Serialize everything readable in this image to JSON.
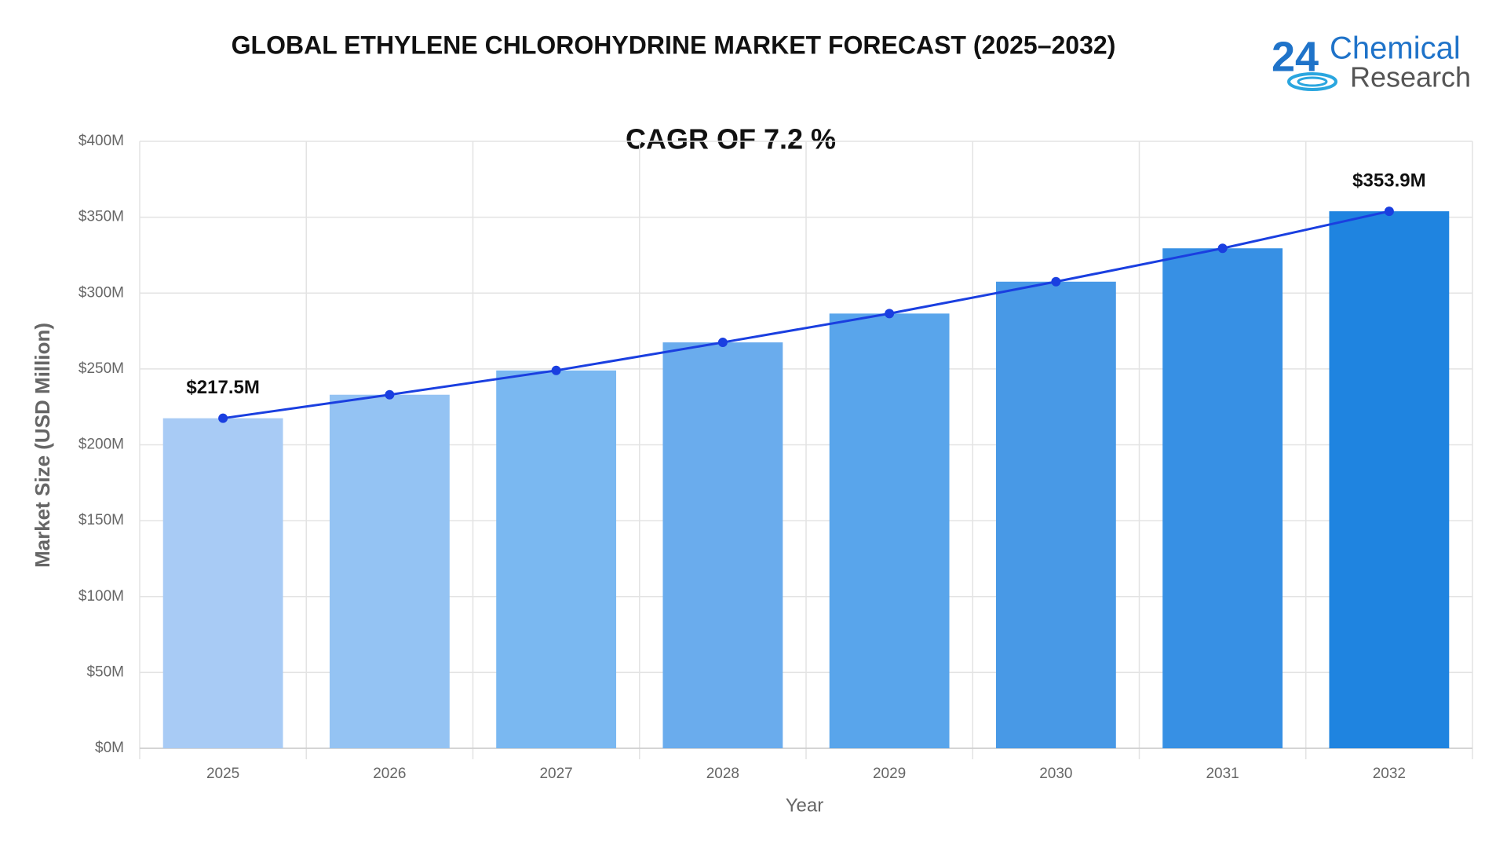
{
  "chart_data": {
    "type": "bar",
    "title": "GLOBAL ETHYLENE CHLOROHYDRINE MARKET FORECAST (2025–2032)",
    "subtitle": "CAGR OF 7.2 %",
    "x_label": "Year",
    "y_label": "Market Size (USD Million)",
    "categories": [
      "2025",
      "2026",
      "2027",
      "2028",
      "2029",
      "2030",
      "2031",
      "2032"
    ],
    "values": [
      217.5,
      233,
      249,
      267.5,
      286.5,
      307.5,
      329.5,
      353.9
    ],
    "value_labels": [
      "$217.5M",
      null,
      null,
      null,
      null,
      null,
      null,
      "$353.9M"
    ],
    "colors": [
      "#a8cbf5",
      "#94c3f3",
      "#7ab8f1",
      "#6aaced",
      "#59a5eb",
      "#4899e6",
      "#3790e4",
      "#1f84e0"
    ],
    "trend_line": true,
    "line_color": "#1a3fe0",
    "ylim": [
      0,
      400
    ],
    "yticks": [
      {
        "value": 0,
        "label": "$0M"
      },
      {
        "value": 50,
        "label": "$50M"
      },
      {
        "value": 100,
        "label": "$100M"
      },
      {
        "value": 150,
        "label": "$150M"
      },
      {
        "value": 200,
        "label": "$200M"
      },
      {
        "value": 250,
        "label": "$250M"
      },
      {
        "value": 300,
        "label": "$300M"
      },
      {
        "value": 350,
        "label": "$350M"
      },
      {
        "value": 400,
        "label": "$400M"
      }
    ],
    "grid": true
  },
  "logo": {
    "number": "24",
    "line1": "Chemical",
    "line2": "Research"
  }
}
